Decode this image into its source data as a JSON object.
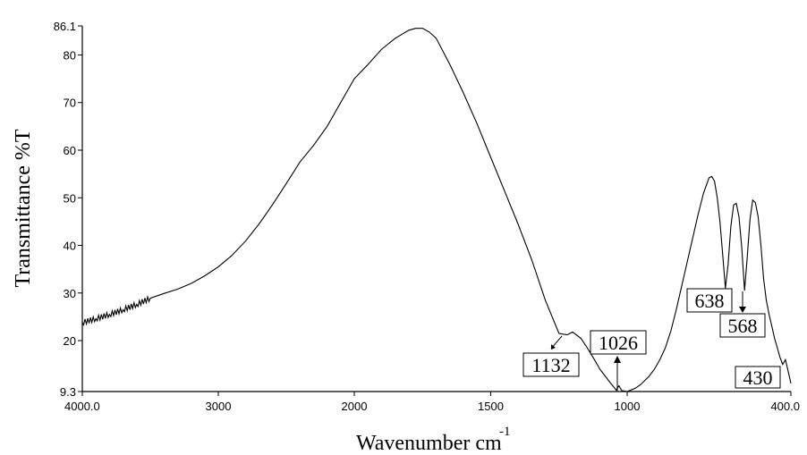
{
  "chart_data": {
    "type": "line",
    "title": "",
    "xlabel": "Wavenumber   cm",
    "xlabel_superscript": "-1",
    "ylabel": "Transmittance  %T",
    "x_scale": "piecewise-linear (scale changes at 2000 cm-1)",
    "x_reversed": true,
    "xlim": [
      4000.0,
      400.0
    ],
    "ylim": [
      9.3,
      86.1
    ],
    "x_tick_labels": [
      "4000.0",
      "3000",
      "2000",
      "1500",
      "1000",
      "400.0"
    ],
    "x_tick_values": [
      4000,
      3000,
      2000,
      1500,
      1000,
      400
    ],
    "y_tick_labels": [
      "9.3",
      "20",
      "30",
      "40",
      "50",
      "60",
      "70",
      "80",
      "86.1"
    ],
    "y_tick_values": [
      9.3,
      20,
      30,
      40,
      50,
      60,
      70,
      80,
      86.1
    ],
    "grid": false,
    "series": [
      {
        "x": [
          4000,
          3900,
          3800,
          3700,
          3600,
          3500,
          3400,
          3300,
          3200,
          3100,
          3000,
          2900,
          2800,
          2700,
          2600,
          2500,
          2400,
          2300,
          2200,
          2150,
          2100,
          2050,
          2000,
          1950,
          1900,
          1850,
          1800,
          1775,
          1750,
          1725,
          1700,
          1650,
          1600,
          1550,
          1500,
          1450,
          1400,
          1350,
          1300,
          1250,
          1220,
          1200,
          1170,
          1150,
          1120,
          1100,
          1080,
          1060,
          1040,
          1030,
          1020,
          1000,
          970,
          950,
          920,
          900,
          880,
          860,
          840,
          820,
          800,
          780,
          760,
          740,
          720,
          700,
          690,
          680,
          670,
          660,
          650,
          640,
          630,
          620,
          610,
          600,
          590,
          580,
          570,
          560,
          550,
          540,
          530,
          520,
          510,
          500,
          490,
          480,
          470,
          460,
          450,
          440,
          430,
          420,
          410,
          400
        ],
        "y": [
          23.8,
          24.6,
          25.5,
          26.5,
          27.6,
          28.9,
          29.9,
          30.8,
          32.0,
          33.6,
          35.5,
          37.9,
          40.9,
          44.5,
          48.6,
          53.0,
          57.5,
          61.0,
          65.0,
          67.5,
          70.0,
          72.5,
          75.0,
          78.0,
          81.2,
          83.5,
          85.2,
          85.6,
          85.6,
          84.8,
          83.5,
          78.0,
          72.0,
          65.5,
          58.5,
          51.5,
          44.5,
          37.0,
          28.5,
          21.5,
          21.2,
          21.8,
          20.5,
          18.8,
          16.0,
          14.0,
          12.5,
          11.0,
          9.6,
          10.5,
          9.5,
          9.3,
          10.0,
          10.8,
          12.5,
          14.0,
          16.0,
          18.5,
          22.0,
          26.5,
          31.5,
          36.5,
          41.5,
          46.5,
          51.0,
          54.2,
          54.5,
          53.5,
          50.0,
          45.0,
          38.0,
          31.0,
          36.0,
          44.0,
          48.5,
          48.8,
          46.0,
          39.5,
          30.5,
          37.5,
          45.5,
          49.5,
          49.0,
          46.0,
          40.0,
          33.0,
          28.5,
          25.5,
          23.0,
          20.5,
          18.5,
          16.5,
          15.0,
          16.0,
          13.5,
          11.0
        ]
      }
    ],
    "annotations": [
      {
        "label": "1132"
      },
      {
        "label": "1026"
      },
      {
        "label": "638"
      },
      {
        "label": "568"
      },
      {
        "label": "430"
      }
    ]
  }
}
